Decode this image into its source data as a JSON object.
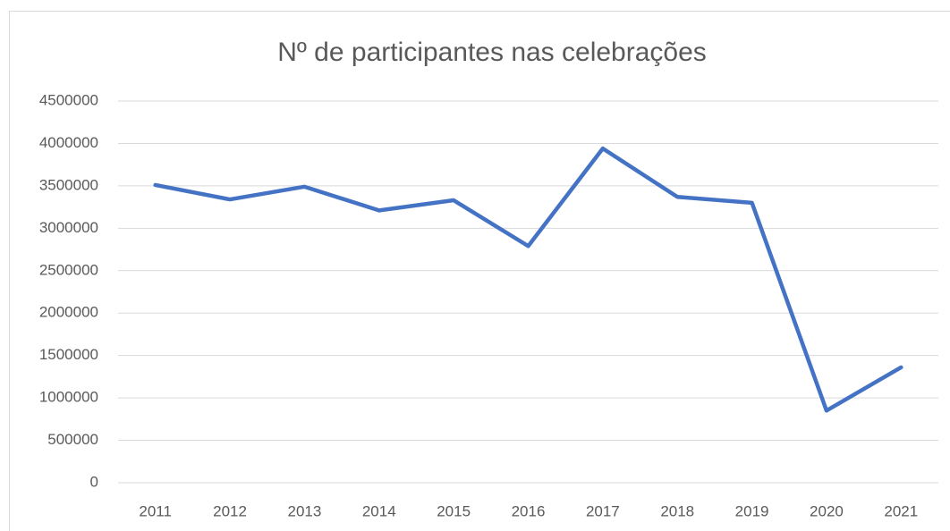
{
  "chart_data": {
    "type": "line",
    "title": "Nº de participantes nas celebrações",
    "categories": [
      "2011",
      "2012",
      "2013",
      "2014",
      "2015",
      "2016",
      "2017",
      "2018",
      "2019",
      "2020",
      "2021"
    ],
    "values": [
      3510000,
      3340000,
      3490000,
      3210000,
      3330000,
      2790000,
      3940000,
      3370000,
      3300000,
      850000,
      1360000
    ],
    "color": "#4472c4",
    "ylim": [
      0,
      4500000
    ],
    "yticks": [
      0,
      500000,
      1000000,
      1500000,
      2000000,
      2500000,
      3000000,
      3500000,
      4000000,
      4500000
    ],
    "grid": true
  }
}
